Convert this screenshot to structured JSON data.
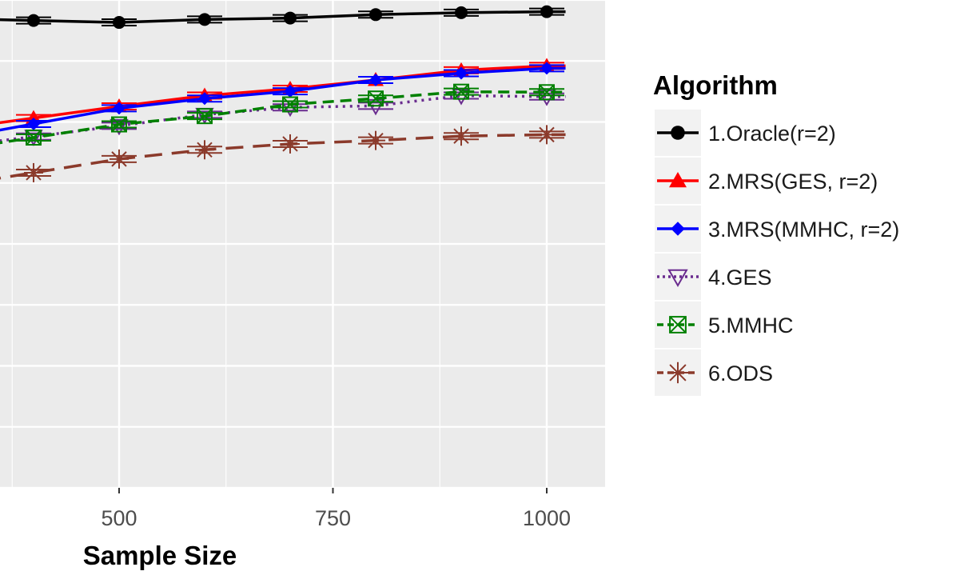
{
  "chart_data": {
    "type": "line",
    "xlabel": "Sample Size",
    "ylabel": "",
    "x_ticks": [
      500,
      750,
      1000
    ],
    "x": [
      400,
      500,
      600,
      700,
      800,
      900,
      1000
    ],
    "xlim": [
      330,
      1015
    ],
    "ylim": [
      0,
      100
    ],
    "grid": true,
    "legend": {
      "title": "Algorithm",
      "placement": "right"
    },
    "series": [
      {
        "name": "1.Oracle(r=2)",
        "color": "#000000",
        "dash": "solid",
        "marker": "filled-circle",
        "values": [
          95.8,
          95.4,
          96.0,
          96.3,
          97.0,
          97.4,
          97.6
        ]
      },
      {
        "name": "2.MRS(GES, r=2)",
        "color": "#ff0000",
        "dash": "solid",
        "marker": "filled-triangle",
        "values": [
          75.8,
          78.2,
          80.4,
          81.8,
          83.6,
          85.6,
          86.5
        ]
      },
      {
        "name": "3.MRS(MMHC, r=2)",
        "color": "#0000ff",
        "dash": "solid",
        "marker": "filled-diamond",
        "values": [
          74.6,
          77.8,
          79.8,
          81.3,
          83.6,
          85.0,
          86.0
        ]
      },
      {
        "name": "4.GES",
        "color": "#6a2c8f",
        "dash": "dotted",
        "marker": "triangle-down",
        "values": [
          72.0,
          74.2,
          76.5,
          78.0,
          78.3,
          80.4,
          80.2
        ]
      },
      {
        "name": "5.MMHC",
        "color": "#008000",
        "dash": "dashed",
        "marker": "boxed-x",
        "values": [
          71.8,
          74.5,
          76.2,
          78.6,
          79.8,
          81.2,
          81.1
        ]
      },
      {
        "name": "6.ODS",
        "color": "#8b3a2b",
        "dash": "longdash",
        "marker": "asterisk",
        "values": [
          64.6,
          67.4,
          69.3,
          70.5,
          71.2,
          72.1,
          72.4
        ]
      }
    ]
  }
}
